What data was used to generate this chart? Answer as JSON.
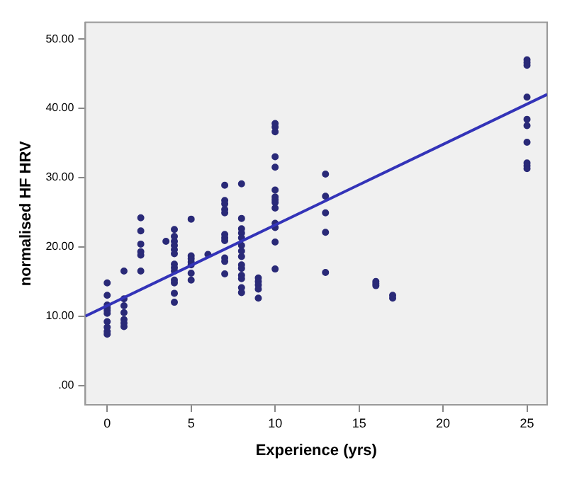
{
  "chart_data": {
    "type": "scatter",
    "xlabel": "Experience (yrs)",
    "ylabel": "normalised HF HRV",
    "xlim": [
      -1.3,
      26.2
    ],
    "ylim": [
      -2.8,
      52.4
    ],
    "xticks": [
      0,
      5,
      10,
      15,
      20,
      25
    ],
    "yticks": [
      {
        "value": 0,
        "label": ".00"
      },
      {
        "value": 10,
        "label": "10.00"
      },
      {
        "value": 20,
        "label": "20.00"
      },
      {
        "value": 30,
        "label": "30.00"
      },
      {
        "value": 40,
        "label": "40.00"
      },
      {
        "value": 50,
        "label": "50.00"
      }
    ],
    "grid": false,
    "legend": false,
    "series": [
      {
        "color": "#2a2a78",
        "marker": "circle",
        "x": [
          0,
          0,
          0,
          0,
          0,
          0,
          0,
          0,
          0,
          0,
          1,
          1,
          1,
          1,
          1,
          1,
          1,
          2,
          2,
          2,
          2,
          2,
          2,
          3.5,
          4,
          4,
          4,
          4,
          4,
          4,
          4,
          4,
          4,
          4,
          4,
          4,
          4,
          5,
          5,
          5,
          5,
          5,
          5,
          5,
          6,
          7,
          7,
          7,
          7,
          7,
          7,
          7,
          7,
          7,
          7,
          7,
          8,
          8,
          8,
          8,
          8,
          8,
          8,
          8,
          8,
          8,
          8,
          8,
          8,
          8,
          9,
          9,
          9,
          9,
          9,
          10,
          10,
          10,
          10,
          10,
          10,
          10,
          10,
          10,
          10,
          10,
          10,
          10,
          10,
          13,
          13,
          13,
          13,
          13,
          16,
          16,
          16,
          17,
          17,
          25,
          25,
          25,
          25,
          25,
          25,
          25,
          25,
          25,
          25
        ],
        "values": [
          14.8,
          13.0,
          11.6,
          11.2,
          10.8,
          10.4,
          9.2,
          8.4,
          7.8,
          7.4,
          16.5,
          12.5,
          11.5,
          10.5,
          9.5,
          9.0,
          8.5,
          24.2,
          22.3,
          20.4,
          19.3,
          18.8,
          16.5,
          20.8,
          22.5,
          21.5,
          20.8,
          20.2,
          19.6,
          19.0,
          17.5,
          17.0,
          16.5,
          15.2,
          14.8,
          13.3,
          12.0,
          24.0,
          18.7,
          18.3,
          17.8,
          17.4,
          16.2,
          15.2,
          18.9,
          28.9,
          26.7,
          26.2,
          25.4,
          24.9,
          21.8,
          21.3,
          20.9,
          18.4,
          17.9,
          16.1,
          29.1,
          24.1,
          22.6,
          22.0,
          21.3,
          20.2,
          19.4,
          18.6,
          17.4,
          16.9,
          15.9,
          15.4,
          14.1,
          13.4,
          15.5,
          15.0,
          14.5,
          13.9,
          12.6,
          37.8,
          37.3,
          36.6,
          33.0,
          31.5,
          28.2,
          27.2,
          26.8,
          26.4,
          25.6,
          23.4,
          22.8,
          20.7,
          16.8,
          30.5,
          27.3,
          24.9,
          22.1,
          16.3,
          15.0,
          14.7,
          14.4,
          13.0,
          12.6,
          47.0,
          46.6,
          46.2,
          41.6,
          38.4,
          37.5,
          35.1,
          32.1,
          31.7,
          31.3
        ]
      },
      {
        "type": "line",
        "marker": "none",
        "color": "#3333b8",
        "x": [
          -1.3,
          26.2
        ],
        "values": [
          10.0,
          42.0
        ]
      }
    ]
  }
}
